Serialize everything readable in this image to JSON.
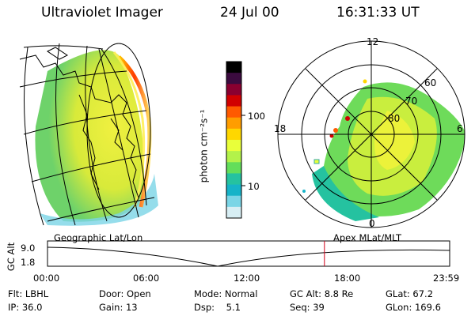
{
  "header": {
    "instrument": "Ultraviolet Imager",
    "date": "24 Jul 00",
    "time": "16:31:33 UT"
  },
  "colorbar": {
    "label": "photon cm⁻²s⁻¹",
    "ticks": [
      "100",
      "10"
    ],
    "colors": [
      "#000000",
      "#3b0b3f",
      "#8a0030",
      "#d10000",
      "#ff5a00",
      "#ff9d00",
      "#ffd700",
      "#e9ff3a",
      "#b3f24a",
      "#63de5a",
      "#25c2a0",
      "#16b3c8",
      "#7ad5e6",
      "#d7eef4"
    ]
  },
  "polar": {
    "mlt_labels": [
      "12",
      "18",
      "6",
      "0"
    ],
    "lat_labels": [
      "60",
      "70",
      "80"
    ]
  },
  "panel_labels": {
    "left": "Geographic Lat/Lon",
    "right": "Apex MLat/MLT"
  },
  "timeline": {
    "axis_title": "GC Alt",
    "y_labels": [
      "9.0",
      "1.8"
    ],
    "x_labels": [
      "00:00",
      "06:00",
      "12:00",
      "18:00",
      "23:59"
    ],
    "marker_fraction": 0.6886
  },
  "info": {
    "row1": [
      "Flt: LBHL",
      "Door: Open",
      "Mode: Normal",
      "GC Alt: 8.8 Re",
      "GLat: 67.2"
    ],
    "row2": [
      "IP: 36.0",
      "Gain: 13",
      "Dsp:    5.1",
      "Seq: 39",
      "GLon: 169.6"
    ]
  }
}
